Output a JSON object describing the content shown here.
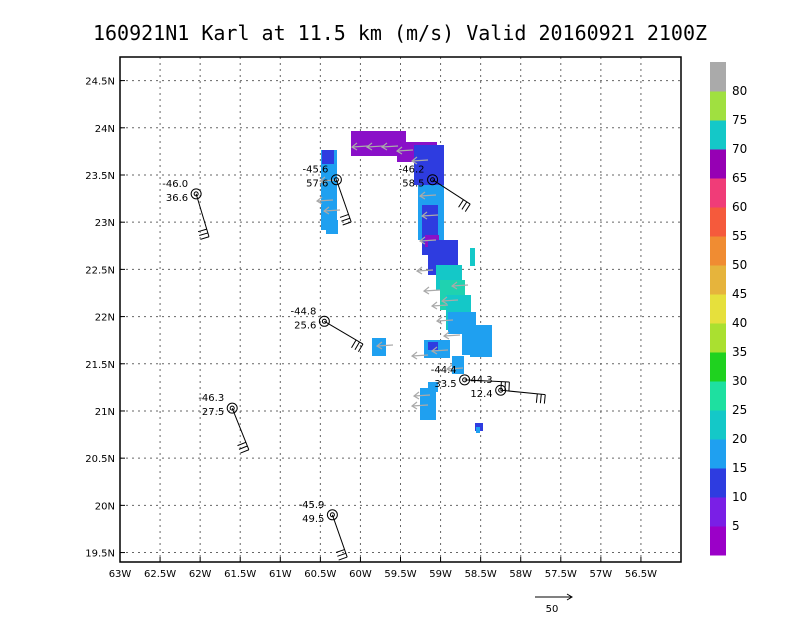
{
  "chart_data": {
    "type": "scatter",
    "title": "160921N1 Karl at 11.5 km (m/s) Valid 20160921  2100Z",
    "x_ticks": [
      "63W",
      "62.5W",
      "62W",
      "61.5W",
      "61W",
      "60.5W",
      "60W",
      "59.5W",
      "59W",
      "58.5W",
      "58W",
      "57.5W",
      "57W",
      "56.5W"
    ],
    "y_ticks": [
      "24.5N",
      "24N",
      "23.5N",
      "23N",
      "22.5N",
      "22N",
      "21.5N",
      "21N",
      "20.5N",
      "20N",
      "19.5N"
    ],
    "xlim": [
      -63,
      -56
    ],
    "ylim": [
      19.4,
      24.75
    ],
    "grid": true,
    "colorbar": {
      "labels": [
        "5",
        "10",
        "15",
        "20",
        "25",
        "30",
        "35",
        "40",
        "45",
        "50",
        "55",
        "60",
        "65",
        "70",
        "75",
        "80"
      ],
      "colors": [
        "#9b00c8",
        "#7a1fe6",
        "#2e3ce0",
        "#1fa0f0",
        "#14c8c8",
        "#1ee0a0",
        "#1fd21f",
        "#aae030",
        "#e6e03c",
        "#e6b43c",
        "#f08c32",
        "#f55a3c",
        "#f03c78",
        "#ff1496",
        "#9600b4",
        "#14c8c8",
        "#a0e040",
        "#aaaaaa"
      ]
    },
    "dropsondes": [
      {
        "temp": "-46.0",
        "wind": "36.6",
        "lon": -62.05,
        "lat": 23.3
      },
      {
        "temp": "-45.6",
        "wind": "57.6",
        "lon": -60.3,
        "lat": 23.45
      },
      {
        "temp": "-46.2",
        "wind": "58.5",
        "lon": -59.1,
        "lat": 23.45
      },
      {
        "temp": "-44.8",
        "wind": "25.6",
        "lon": -60.45,
        "lat": 21.95
      },
      {
        "temp": "-44.4",
        "wind": "33.5",
        "lon": -58.7,
        "lat": 21.33
      },
      {
        "temp": "44.3",
        "wind": "12.4",
        "lon": -58.25,
        "lat": 21.22
      },
      {
        "temp": "-46.3",
        "wind": "27.5",
        "lon": -61.6,
        "lat": 21.03
      },
      {
        "temp": "-45.9",
        "wind": "49.5",
        "lon": -60.35,
        "lat": 19.9
      }
    ],
    "reference_vector_label": "50"
  }
}
